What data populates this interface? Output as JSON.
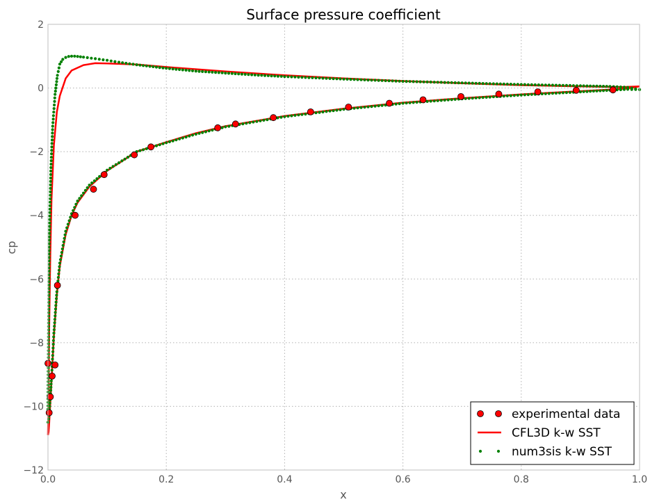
{
  "chart_data": {
    "type": "line",
    "title": "Surface pressure coefficient",
    "xlabel": "x",
    "ylabel": "cp",
    "xlim": [
      0.0,
      1.0
    ],
    "ylim": [
      -12,
      2
    ],
    "xticks": [
      0.0,
      0.2,
      0.4,
      0.6,
      0.8,
      1.0
    ],
    "xtick_labels": [
      "0.0",
      "0.2",
      "0.4",
      "0.6",
      "0.8",
      "1.0"
    ],
    "yticks": [
      -12,
      -10,
      -8,
      -6,
      -4,
      -2,
      0,
      2
    ],
    "ytick_labels": [
      "−12",
      "−10",
      "−8",
      "−6",
      "−4",
      "−2",
      "0",
      "2"
    ],
    "grid": true,
    "legend_position": "bottom-right",
    "series": [
      {
        "name": "experimental data",
        "kind": "markers",
        "color": "#ff0000",
        "edge_color": "#000000",
        "x": [
          0.0,
          0.002,
          0.004,
          0.007,
          0.012,
          0.016,
          0.046,
          0.077,
          0.095,
          0.146,
          0.174,
          0.287,
          0.317,
          0.381,
          0.444,
          0.508,
          0.577,
          0.634,
          0.698,
          0.762,
          0.828,
          0.893,
          0.955
        ],
        "y": [
          -8.65,
          -10.2,
          -9.7,
          -9.05,
          -8.7,
          -6.2,
          -4.0,
          -3.18,
          -2.72,
          -2.1,
          -1.85,
          -1.25,
          -1.13,
          -0.93,
          -0.75,
          -0.6,
          -0.48,
          -0.37,
          -0.27,
          -0.19,
          -0.12,
          -0.07,
          -0.06
        ]
      },
      {
        "name": "CFL3D k-w SST",
        "kind": "line",
        "color": "#ff0000",
        "upper": {
          "x": [
            0.0,
            0.001,
            0.002,
            0.004,
            0.006,
            0.01,
            0.015,
            0.02,
            0.03,
            0.04,
            0.06,
            0.08,
            0.1,
            0.15,
            0.2,
            0.3,
            0.4,
            0.5,
            0.6,
            0.7,
            0.8,
            0.9,
            0.97,
            1.0
          ],
          "y": [
            -10.9,
            -9.5,
            -7.6,
            -5.2,
            -3.5,
            -1.8,
            -0.75,
            -0.25,
            0.3,
            0.55,
            0.72,
            0.78,
            0.77,
            0.74,
            0.66,
            0.52,
            0.4,
            0.3,
            0.22,
            0.15,
            0.09,
            0.05,
            0.03,
            0.05
          ]
        },
        "lower": {
          "x": [
            0.0,
            0.001,
            0.002,
            0.004,
            0.006,
            0.008,
            0.01,
            0.015,
            0.02,
            0.03,
            0.04,
            0.05,
            0.07,
            0.1,
            0.15,
            0.2,
            0.25,
            0.3,
            0.4,
            0.5,
            0.6,
            0.7,
            0.8,
            0.9,
            0.95,
            0.98,
            1.0
          ],
          "y": [
            -10.9,
            -10.8,
            -10.55,
            -9.9,
            -9.2,
            -8.5,
            -7.8,
            -6.5,
            -5.6,
            -4.6,
            -4.0,
            -3.6,
            -3.1,
            -2.6,
            -2.0,
            -1.7,
            -1.42,
            -1.2,
            -0.88,
            -0.65,
            -0.46,
            -0.32,
            -0.2,
            -0.1,
            -0.05,
            -0.01,
            0.05
          ]
        }
      },
      {
        "name": "num3sis k-w SST",
        "kind": "dots",
        "color": "#008000",
        "upper": {
          "x": [
            0.0,
            0.002,
            0.005,
            0.008,
            0.012,
            0.016,
            0.02,
            0.025,
            0.03,
            0.035,
            0.04,
            0.045,
            0.05,
            0.06,
            0.08,
            0.1,
            0.12,
            0.15,
            0.2,
            0.25,
            0.3,
            0.35,
            0.4,
            0.5,
            0.6,
            0.7,
            0.8,
            0.9,
            0.95,
            0.98,
            1.0
          ],
          "y": [
            -10.2,
            -5.0,
            -2.5,
            -1.2,
            -0.2,
            0.4,
            0.75,
            0.9,
            0.96,
            0.99,
            1.0,
            1.0,
            0.99,
            0.97,
            0.92,
            0.87,
            0.81,
            0.73,
            0.62,
            0.53,
            0.47,
            0.41,
            0.36,
            0.28,
            0.21,
            0.16,
            0.11,
            0.07,
            0.05,
            0.02,
            -0.05
          ]
        },
        "lower": {
          "x": [
            0.0,
            0.001,
            0.002,
            0.004,
            0.006,
            0.008,
            0.01,
            0.015,
            0.02,
            0.03,
            0.04,
            0.05,
            0.07,
            0.1,
            0.15,
            0.2,
            0.25,
            0.3,
            0.4,
            0.5,
            0.6,
            0.7,
            0.8,
            0.9,
            0.95,
            0.98,
            1.0
          ],
          "y": [
            -10.5,
            -10.4,
            -10.2,
            -9.7,
            -9.1,
            -8.4,
            -7.7,
            -6.4,
            -5.5,
            -4.5,
            -3.95,
            -3.55,
            -3.05,
            -2.58,
            -2.0,
            -1.72,
            -1.45,
            -1.22,
            -0.9,
            -0.67,
            -0.48,
            -0.34,
            -0.22,
            -0.12,
            -0.07,
            -0.04,
            -0.05
          ]
        }
      }
    ]
  }
}
